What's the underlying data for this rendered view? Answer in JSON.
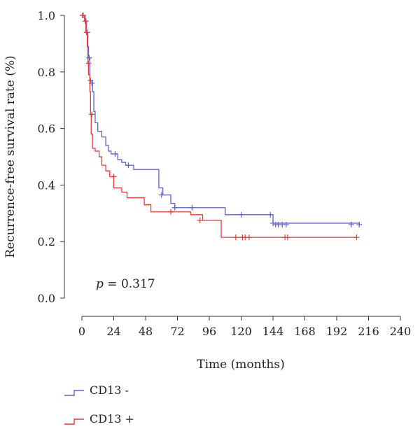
{
  "chart_data": {
    "type": "line",
    "subtype": "kaplan-meier",
    "xlabel": "Time (months)",
    "ylabel": "Recurrence-free survival rate (%)",
    "xlim": [
      0,
      240
    ],
    "ylim": [
      0,
      1.0
    ],
    "x_ticks": [
      "0",
      "24",
      "48",
      "72",
      "96",
      "120",
      "144",
      "168",
      "192",
      "216",
      "240"
    ],
    "y_ticks": [
      "0.0",
      "0.2",
      "0.4",
      "0.6",
      "0.8",
      "1.0"
    ],
    "annotation": {
      "p_symbol": "p",
      "p_text": " = 0.317"
    },
    "grid": false,
    "legend_position": "bottom-left",
    "series": [
      {
        "name": "CD13 -",
        "color": "#5b63c8",
        "steps": [
          [
            0,
            1.0
          ],
          [
            2.5,
            0.98
          ],
          [
            3.5,
            0.94
          ],
          [
            4.5,
            0.89
          ],
          [
            5,
            0.85
          ],
          [
            6,
            0.77
          ],
          [
            8,
            0.73
          ],
          [
            9,
            0.66
          ],
          [
            10,
            0.62
          ],
          [
            12,
            0.59
          ],
          [
            15,
            0.57
          ],
          [
            18,
            0.54
          ],
          [
            20,
            0.52
          ],
          [
            22,
            0.51
          ],
          [
            27,
            0.49
          ],
          [
            30,
            0.48
          ],
          [
            33,
            0.47
          ],
          [
            39,
            0.455
          ],
          [
            58,
            0.39
          ],
          [
            61,
            0.365
          ],
          [
            67,
            0.335
          ],
          [
            70,
            0.32
          ],
          [
            108,
            0.295
          ],
          [
            144,
            0.265
          ],
          [
            209,
            0.26
          ]
        ],
        "censors": [
          [
            1,
            1.0
          ],
          [
            3,
            0.98
          ],
          [
            4,
            0.94
          ],
          [
            5.5,
            0.85
          ],
          [
            6.5,
            0.77
          ],
          [
            7.5,
            0.76
          ],
          [
            25,
            0.51
          ],
          [
            35,
            0.47
          ],
          [
            60,
            0.365
          ],
          [
            70,
            0.32
          ],
          [
            83,
            0.32
          ],
          [
            120,
            0.295
          ],
          [
            142,
            0.295
          ],
          [
            144,
            0.265
          ],
          [
            146,
            0.26
          ],
          [
            148,
            0.26
          ],
          [
            151,
            0.26
          ],
          [
            154,
            0.26
          ],
          [
            203,
            0.26
          ],
          [
            209,
            0.26
          ]
        ]
      },
      {
        "name": "CD13 +",
        "color": "#e03c3c",
        "steps": [
          [
            0,
            1.0
          ],
          [
            2,
            0.98
          ],
          [
            3,
            0.94
          ],
          [
            4,
            0.89
          ],
          [
            4.5,
            0.83
          ],
          [
            5,
            0.79
          ],
          [
            6,
            0.73
          ],
          [
            6.5,
            0.65
          ],
          [
            7,
            0.58
          ],
          [
            8,
            0.53
          ],
          [
            10,
            0.52
          ],
          [
            13,
            0.5
          ],
          [
            15,
            0.47
          ],
          [
            18,
            0.45
          ],
          [
            21,
            0.43
          ],
          [
            24,
            0.39
          ],
          [
            30,
            0.375
          ],
          [
            34,
            0.355
          ],
          [
            47,
            0.33
          ],
          [
            52,
            0.305
          ],
          [
            82,
            0.295
          ],
          [
            91,
            0.275
          ],
          [
            105,
            0.215
          ],
          [
            207,
            0.215
          ]
        ],
        "censors": [
          [
            0.5,
            1.0
          ],
          [
            2.5,
            0.98
          ],
          [
            3.5,
            0.94
          ],
          [
            5,
            0.83
          ],
          [
            7.5,
            0.65
          ],
          [
            24,
            0.43
          ],
          [
            67,
            0.305
          ],
          [
            89,
            0.275
          ],
          [
            116,
            0.215
          ],
          [
            121,
            0.215
          ],
          [
            123,
            0.215
          ],
          [
            126,
            0.215
          ],
          [
            153,
            0.215
          ],
          [
            155,
            0.215
          ],
          [
            207,
            0.215
          ]
        ]
      }
    ]
  }
}
